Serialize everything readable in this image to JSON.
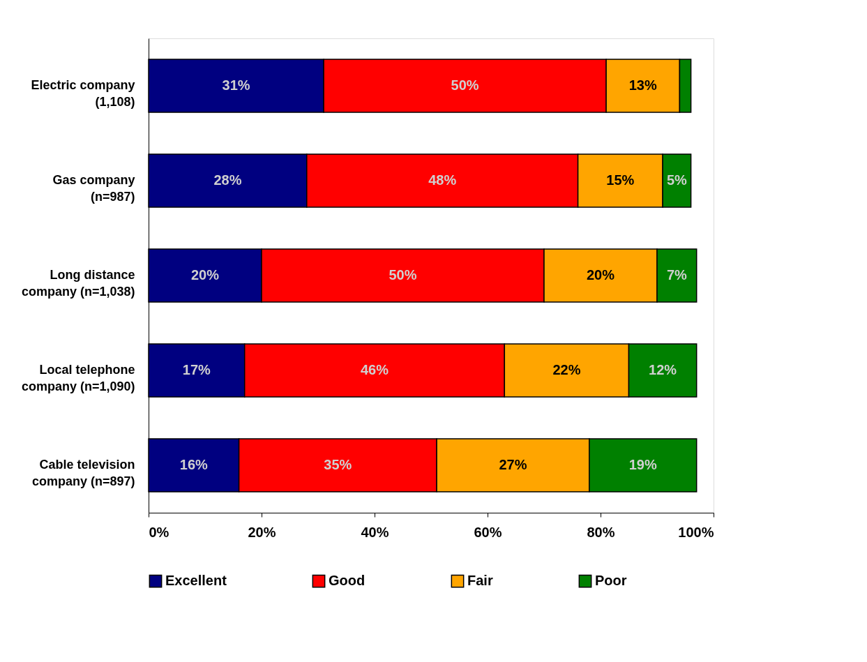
{
  "chart_data": {
    "type": "bar",
    "orientation": "horizontal",
    "stacked": true,
    "categories": [
      "Electric company\n(1,108)",
      "Gas company\n(n=987)",
      "Long distance\ncompany (n=1,038)",
      "Local telephone\ncompany (n=1,090)",
      "Cable television\ncompany (n=897)"
    ],
    "series": [
      {
        "name": "Excellent",
        "color": "#000080",
        "values": [
          31,
          28,
          20,
          17,
          16
        ],
        "value_labels": [
          "31%",
          "28%",
          "20%",
          "17%",
          "16%"
        ]
      },
      {
        "name": "Good",
        "color": "#ff0000",
        "values": [
          50,
          48,
          50,
          46,
          35
        ],
        "value_labels": [
          "50%",
          "48%",
          "50%",
          "46%",
          "35%"
        ]
      },
      {
        "name": "Fair",
        "color": "#ffa500",
        "values": [
          13,
          15,
          20,
          22,
          27
        ],
        "value_labels": [
          "13%",
          "15%",
          "20%",
          "22%",
          "27%"
        ]
      },
      {
        "name": "Poor",
        "color": "#008000",
        "values": [
          2,
          5,
          7,
          12,
          19
        ],
        "value_labels": [
          null,
          "5%",
          "7%",
          "12%",
          "19%"
        ]
      }
    ],
    "xlim": [
      0,
      100
    ],
    "xticks": [
      {
        "value": 0,
        "label": "0%"
      },
      {
        "value": 20,
        "label": "20%"
      },
      {
        "value": 40,
        "label": "40%"
      },
      {
        "value": 60,
        "label": "60%"
      },
      {
        "value": 80,
        "label": "80%"
      },
      {
        "value": 100,
        "label": "100%"
      }
    ],
    "grid": false,
    "legend": "bottom"
  }
}
